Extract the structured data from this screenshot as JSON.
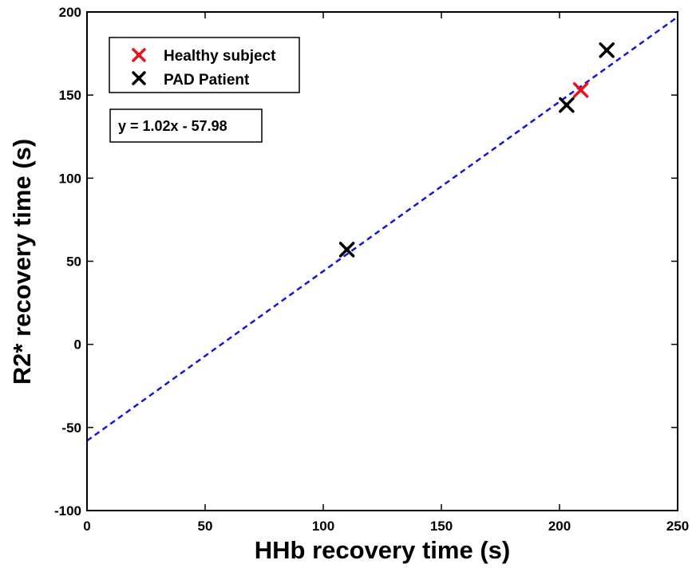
{
  "chart_data": {
    "type": "scatter",
    "title": "",
    "xlabel": "HHb recovery time (s)",
    "ylabel": "R2* recovery time (s)",
    "xlim": [
      0,
      250
    ],
    "ylim": [
      -100,
      200
    ],
    "xticks": [
      0,
      50,
      100,
      150,
      200,
      250
    ],
    "yticks": [
      -100,
      -50,
      0,
      50,
      100,
      150,
      200
    ],
    "grid": false,
    "legend_position": "top-left",
    "series": [
      {
        "name": "Healthy subject",
        "color": "#e8141c",
        "marker": "x",
        "points": [
          [
            209,
            153
          ]
        ]
      },
      {
        "name": "PAD Patient",
        "color": "#000000",
        "marker": "x",
        "points": [
          [
            110,
            57
          ],
          [
            203,
            144
          ],
          [
            220,
            177
          ]
        ]
      }
    ],
    "fit_line": {
      "equation": "y = 1.02x - 57.98",
      "slope": 1.02,
      "intercept": -57.98,
      "color": "#1414e0",
      "style": "dashed"
    }
  }
}
